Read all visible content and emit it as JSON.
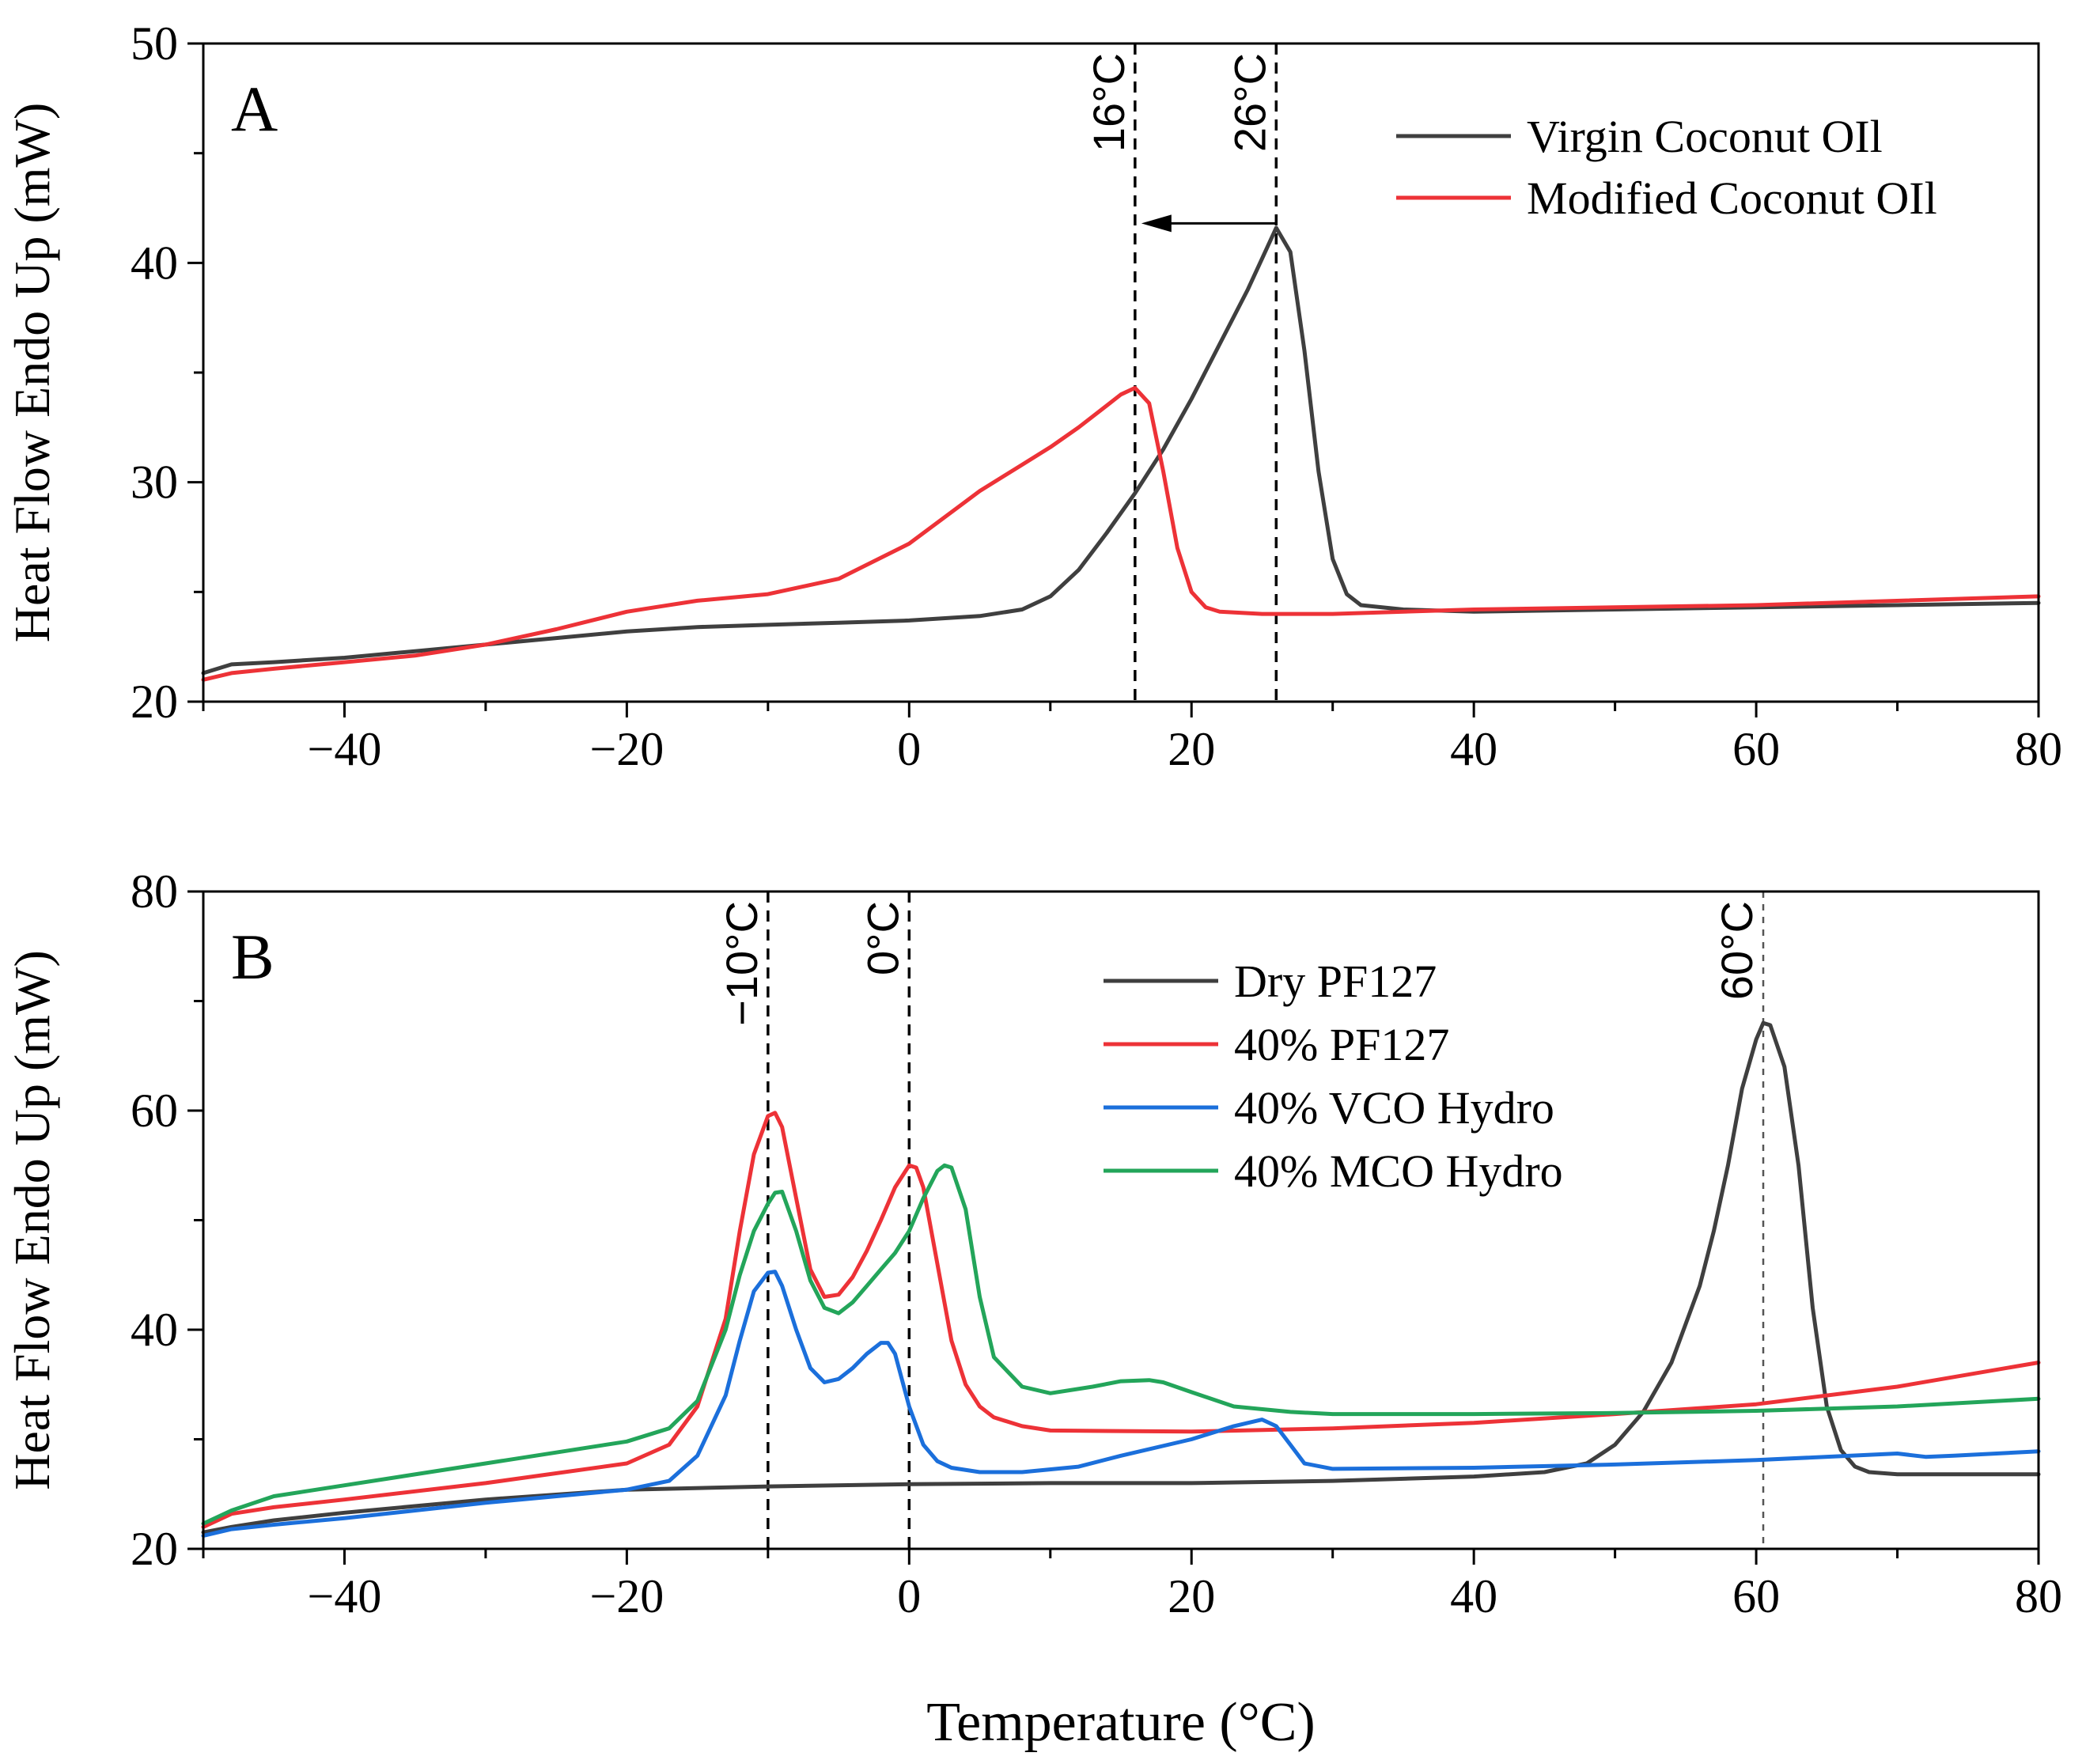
{
  "figure": {
    "xlabel": "Temperature (°C)"
  },
  "chart_data": [
    {
      "type": "line",
      "panel_label": "A",
      "title": "",
      "xlabel": "",
      "ylabel": "Heat Flow Endo Up (mW)",
      "xlim": [
        -50,
        80
      ],
      "ylim": [
        20,
        50
      ],
      "xticks": [
        -40,
        -20,
        0,
        20,
        40,
        60,
        80
      ],
      "xtick_labels": [
        "−40",
        "−20",
        "0",
        "20",
        "40",
        "60",
        "80"
      ],
      "yticks": [
        20,
        30,
        40,
        50
      ],
      "ytick_labels": [
        "20",
        "30",
        "40",
        "50"
      ],
      "legend_position": "top-right",
      "series": [
        {
          "name": "Virgin Coconut OIl",
          "color": "#3f3f3f",
          "x": [
            -50,
            -48,
            -45,
            -40,
            -35,
            -30,
            -25,
            -20,
            -15,
            -10,
            -5,
            0,
            5,
            8,
            10,
            12,
            14,
            16,
            18,
            20,
            22,
            24,
            25,
            26,
            27,
            28,
            29,
            30,
            31,
            32,
            35,
            40,
            50,
            60,
            70,
            80
          ],
          "y": [
            21.3,
            21.7,
            21.8,
            22.0,
            22.3,
            22.6,
            22.9,
            23.2,
            23.4,
            23.5,
            23.6,
            23.7,
            23.9,
            24.2,
            24.8,
            26.0,
            27.7,
            29.5,
            31.5,
            33.8,
            36.3,
            38.8,
            40.2,
            41.6,
            40.5,
            36.0,
            30.5,
            26.5,
            24.9,
            24.4,
            24.2,
            24.1,
            24.2,
            24.3,
            24.4,
            24.5
          ]
        },
        {
          "name": "Modified Coconut OIl",
          "color": "#ed3237",
          "x": [
            -50,
            -48,
            -45,
            -40,
            -35,
            -30,
            -25,
            -20,
            -18,
            -15,
            -10,
            -5,
            0,
            5,
            8,
            10,
            12,
            14,
            15,
            16,
            17,
            18,
            19,
            20,
            21,
            22,
            25,
            30,
            40,
            60,
            80
          ],
          "y": [
            21.0,
            21.3,
            21.5,
            21.8,
            22.1,
            22.6,
            23.3,
            24.1,
            24.3,
            24.6,
            24.9,
            25.6,
            27.2,
            29.6,
            30.8,
            31.6,
            32.5,
            33.5,
            34.0,
            34.3,
            33.6,
            30.5,
            27.0,
            25.0,
            24.3,
            24.1,
            24.0,
            24.0,
            24.2,
            24.4,
            24.8
          ]
        }
      ],
      "annotations": [
        {
          "type": "vline",
          "x": 16,
          "label": "16°C"
        },
        {
          "type": "vline",
          "x": 26,
          "label": "26°C"
        },
        {
          "type": "arrow",
          "from": [
            26,
            41.8
          ],
          "to": [
            16,
            41.8
          ]
        }
      ]
    },
    {
      "type": "line",
      "panel_label": "B",
      "title": "",
      "xlabel": "Temperature (°C)",
      "ylabel": "Heat Flow Endo Up (mW)",
      "xlim": [
        -50,
        80
      ],
      "ylim": [
        20,
        80
      ],
      "xticks": [
        -40,
        -20,
        0,
        20,
        40,
        60,
        80
      ],
      "xtick_labels": [
        "−40",
        "−20",
        "0",
        "20",
        "40",
        "60",
        "80"
      ],
      "yticks": [
        20,
        40,
        60,
        80
      ],
      "ytick_labels": [
        "20",
        "40",
        "60",
        "80"
      ],
      "legend_position": "top-center",
      "series": [
        {
          "name": "Dry PF127",
          "color": "#3f3f3f",
          "x": [
            -50,
            -48,
            -45,
            -40,
            -30,
            -20,
            -10,
            0,
            10,
            20,
            30,
            40,
            45,
            48,
            50,
            52,
            54,
            56,
            57,
            58,
            59,
            60,
            60.5,
            61,
            62,
            63,
            64,
            65,
            66,
            67,
            68,
            70,
            75,
            80
          ],
          "y": [
            21.5,
            22.0,
            22.6,
            23.3,
            24.5,
            25.4,
            25.7,
            25.9,
            26.0,
            26.0,
            26.2,
            26.6,
            27.0,
            27.8,
            29.5,
            32.5,
            37.0,
            44.0,
            49.0,
            55.0,
            62.0,
            66.5,
            68.0,
            67.8,
            64.0,
            55.0,
            42.0,
            33.0,
            29.0,
            27.5,
            27.0,
            26.8,
            26.8,
            26.8
          ]
        },
        {
          "name": "40% PF127",
          "color": "#ed3237",
          "x": [
            -50,
            -48,
            -45,
            -40,
            -30,
            -20,
            -17,
            -15,
            -13,
            -12,
            -11,
            -10,
            -9.5,
            -9,
            -8,
            -7,
            -6,
            -5,
            -4,
            -3,
            -2,
            -1,
            0,
            0.5,
            1,
            2,
            3,
            4,
            5,
            6,
            8,
            10,
            20,
            30,
            40,
            50,
            60,
            70,
            80
          ],
          "y": [
            22.0,
            23.2,
            23.8,
            24.5,
            26.0,
            27.8,
            29.5,
            33.0,
            41.0,
            49.0,
            56.0,
            59.5,
            59.8,
            58.5,
            52.0,
            45.5,
            43.0,
            43.2,
            44.8,
            47.2,
            50.0,
            53.0,
            55.0,
            54.8,
            53.0,
            46.0,
            39.0,
            35.0,
            33.0,
            32.0,
            31.2,
            30.8,
            30.7,
            31.0,
            31.5,
            32.3,
            33.2,
            34.8,
            37.0
          ]
        },
        {
          "name": "40% VCO Hydro",
          "color": "#1b6fdb",
          "x": [
            -50,
            -48,
            -45,
            -40,
            -30,
            -20,
            -17,
            -15,
            -13,
            -12,
            -11,
            -10,
            -9.5,
            -9,
            -8,
            -7,
            -6,
            -5,
            -4,
            -3,
            -2,
            -1.5,
            -1,
            0,
            1,
            2,
            3,
            5,
            8,
            12,
            15,
            20,
            23,
            25,
            26,
            27,
            28,
            30,
            40,
            50,
            60,
            70,
            72,
            74,
            80
          ],
          "y": [
            21.2,
            21.8,
            22.2,
            22.8,
            24.2,
            25.4,
            26.2,
            28.5,
            34.0,
            39.0,
            43.5,
            45.2,
            45.3,
            44.0,
            40.0,
            36.5,
            35.2,
            35.5,
            36.5,
            37.8,
            38.8,
            38.8,
            37.8,
            33.0,
            29.5,
            28.0,
            27.4,
            27.0,
            27.0,
            27.5,
            28.5,
            30.0,
            31.2,
            31.8,
            31.2,
            29.5,
            27.8,
            27.3,
            27.4,
            27.7,
            28.1,
            28.7,
            28.4,
            28.5,
            28.9
          ]
        },
        {
          "name": "40% MCO Hydro",
          "color": "#23a55a",
          "x": [
            -50,
            -48,
            -45,
            -40,
            -30,
            -20,
            -17,
            -15,
            -13,
            -12,
            -11,
            -10,
            -9.5,
            -9,
            -8,
            -7,
            -6,
            -5,
            -4,
            -3,
            -2,
            -1,
            0,
            1,
            2,
            2.5,
            3,
            4,
            5,
            6,
            8,
            10,
            13,
            15,
            17,
            18,
            20,
            23,
            27,
            30,
            40,
            50,
            60,
            70,
            80
          ],
          "y": [
            22.3,
            23.5,
            24.8,
            25.8,
            27.8,
            29.8,
            31.0,
            33.5,
            40.0,
            45.0,
            49.0,
            51.5,
            52.5,
            52.6,
            49.0,
            44.5,
            42.0,
            41.5,
            42.5,
            44.0,
            45.5,
            47.0,
            49.0,
            52.0,
            54.5,
            55.0,
            54.8,
            51.0,
            43.0,
            37.5,
            34.8,
            34.2,
            34.8,
            35.3,
            35.4,
            35.2,
            34.3,
            33.0,
            32.5,
            32.3,
            32.3,
            32.4,
            32.6,
            33.0,
            33.7
          ]
        }
      ],
      "annotations": [
        {
          "type": "vline",
          "x": -10,
          "label": "−10°C"
        },
        {
          "type": "vline",
          "x": 0,
          "label": "0°C"
        },
        {
          "type": "vline",
          "x": 60.5,
          "label": "60°C"
        }
      ]
    }
  ]
}
